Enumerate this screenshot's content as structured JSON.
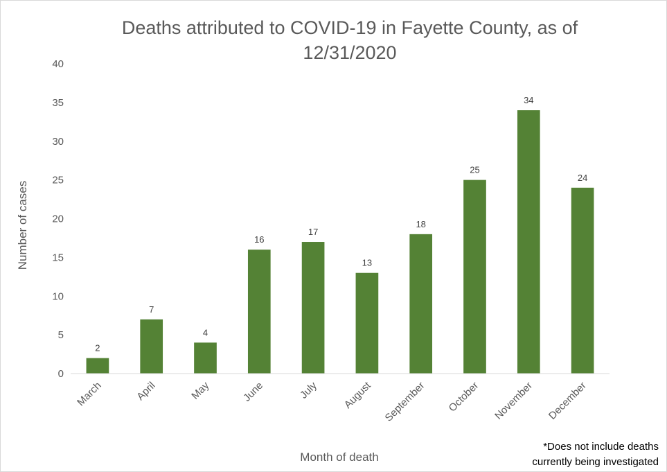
{
  "chart_data": {
    "type": "bar",
    "title": "Deaths attributed to COVID-19 in Fayette County, as of 12/31/2020",
    "xlabel": "Month of death",
    "ylabel": "Number of cases",
    "categories": [
      "March",
      "April",
      "May",
      "June",
      "July",
      "August",
      "September",
      "October",
      "November",
      "December"
    ],
    "values": [
      2,
      7,
      4,
      16,
      17,
      13,
      18,
      25,
      34,
      24
    ],
    "ylim": [
      0,
      40
    ],
    "yticks": [
      0,
      5,
      10,
      15,
      20,
      25,
      30,
      35,
      40
    ],
    "grid": false,
    "data_labels": true,
    "bar_color": "#548235",
    "footnote_line1": "*Does not include deaths",
    "footnote_line2": "currently being investigated"
  }
}
